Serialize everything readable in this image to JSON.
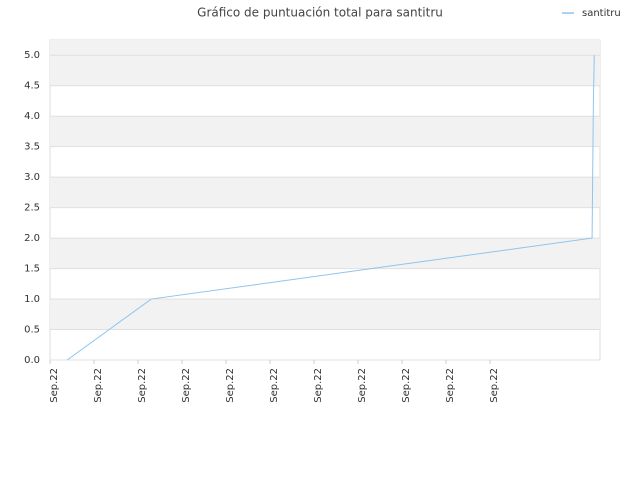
{
  "chart_data": {
    "type": "line",
    "title": "Gráfico de puntuación total para santitru",
    "x": [
      0.39,
      2.3,
      12.32,
      12.33,
      12.35,
      12.37
    ],
    "series": [
      {
        "name": "santitru",
        "color": "#8ec4ee",
        "values": [
          0,
          1,
          2,
          2.75,
          4.25,
          5
        ]
      }
    ],
    "xlim": [
      0,
      12.5
    ],
    "xticks": [
      {
        "value": 0,
        "label": "Sep.22"
      },
      {
        "value": 1,
        "label": "Sep.22"
      },
      {
        "value": 2,
        "label": "Sep.22"
      },
      {
        "value": 3,
        "label": "Sep.22"
      },
      {
        "value": 4,
        "label": "Sep.22"
      },
      {
        "value": 5,
        "label": "Sep.22"
      },
      {
        "value": 6,
        "label": "Sep.22"
      },
      {
        "value": 7,
        "label": "Sep.22"
      },
      {
        "value": 8,
        "label": "Sep.22"
      },
      {
        "value": 9,
        "label": "Sep.22"
      },
      {
        "value": 10,
        "label": "Sep.22"
      }
    ],
    "ylim": [
      0,
      5.25
    ],
    "yticks": [
      {
        "value": 0,
        "label": "0.0"
      },
      0.5,
      {
        "value": 1,
        "label": "1.0"
      },
      1.5,
      {
        "value": 2,
        "label": "2.0"
      },
      2.5,
      {
        "value": 3,
        "label": "3.0"
      },
      3.5,
      {
        "value": 4,
        "label": "4.0"
      },
      4.5,
      {
        "value": 5,
        "label": "5.0"
      }
    ],
    "grid": true,
    "legend": "top-right"
  }
}
